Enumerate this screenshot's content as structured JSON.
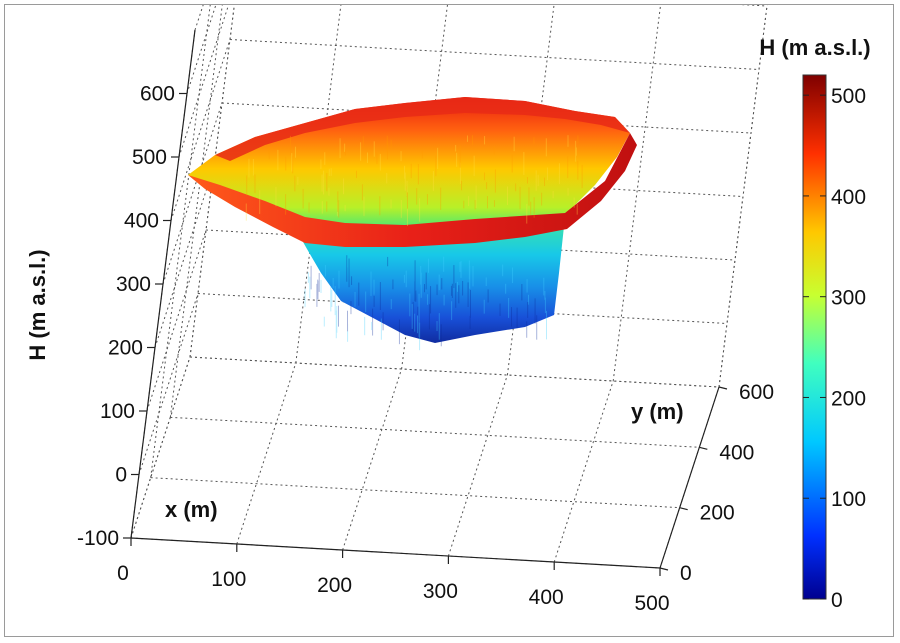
{
  "chart_data": {
    "type": "surface3d",
    "title": "",
    "xlabel": "x (m)",
    "ylabel": "y (m)",
    "zlabel": "H (m a.s.l.)",
    "x_ticks": [
      "0",
      "100",
      "200",
      "300",
      "400",
      "500"
    ],
    "y_ticks": [
      "0",
      "200",
      "400",
      "600"
    ],
    "z_ticks": [
      "-100",
      "0",
      "100",
      "200",
      "300",
      "400",
      "500",
      "600"
    ],
    "xlim": [
      0,
      500
    ],
    "ylim": [
      0,
      600
    ],
    "zlim": [
      -100,
      600
    ],
    "grid": true,
    "surface": {
      "description_values": "open-pit terrain surface",
      "rim_elevation": 500,
      "pit_floor_elevation": 50
    },
    "colorbar": {
      "title": "H (m a.s.l.)",
      "ticks": [
        "0",
        "100",
        "200",
        "300",
        "400",
        "500"
      ],
      "range": [
        0,
        520
      ],
      "colormap": "jet",
      "colors": [
        "#00008f",
        "#0030ff",
        "#00c8ff",
        "#40ffbf",
        "#c8ff30",
        "#ffc800",
        "#ff3000",
        "#7f0000"
      ]
    }
  }
}
